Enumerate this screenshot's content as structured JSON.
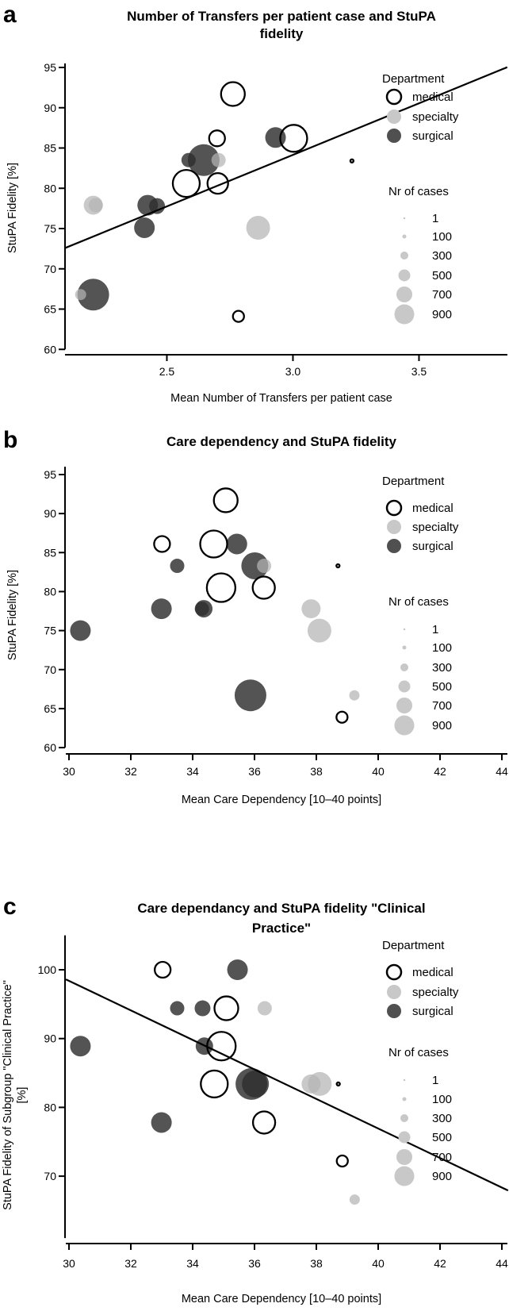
{
  "legend": {
    "department_title": "Department",
    "departments": [
      "medical",
      "specialty",
      "surgical"
    ],
    "cases_title": "Nr of cases",
    "cases": [
      "1",
      "100",
      "300",
      "500",
      "700",
      "900"
    ]
  },
  "colors": {
    "medical_stroke": "#000000",
    "specialty": "#b4b4b4",
    "surgical": "#2e2e2e",
    "legend_specialty": "#c8c8c8",
    "legend_surgical": "#505050"
  },
  "chart_data": [
    {
      "panel_label": "a",
      "type": "scatter",
      "title_lines": [
        "Number of Transfers per patient case and StuPA",
        "fidelity"
      ],
      "xlabel": "Mean Number of Transfers per patient case",
      "ylabel_lines": [
        "StuPA Fidelity [%]"
      ],
      "xlim": [
        2.096,
        3.85
      ],
      "ylim": [
        60,
        95.5
      ],
      "xticks": [
        "2.5",
        "3.0",
        "3.5"
      ],
      "yticks": [
        "60",
        "65",
        "70",
        "75",
        "80",
        "85",
        "90",
        "95"
      ],
      "regression": {
        "intercept": 45.75,
        "slope": 12.8
      },
      "point_format": [
        "x",
        "y",
        "nr_of_cases"
      ],
      "series": [
        {
          "name": "surgical",
          "points": [
            [
              2.424,
              77.9,
              940
            ],
            [
              2.461,
              77.8,
              700
            ],
            [
              2.411,
              75.1,
              940
            ],
            [
              2.208,
              66.8,
              1500
            ],
            [
              2.586,
              83.5,
              620
            ],
            [
              2.646,
              83.5,
              1500
            ],
            [
              2.931,
              86.3,
              940
            ]
          ]
        },
        {
          "name": "specialty",
          "points": [
            [
              2.208,
              77.9,
              860
            ],
            [
              2.218,
              77.9,
              620
            ],
            [
              2.705,
              83.5,
              620
            ],
            [
              2.862,
              75.1,
              1100
            ],
            [
              2.158,
              66.8,
              460
            ]
          ]
        },
        {
          "name": "medical",
          "points": [
            [
              2.762,
              91.7,
              1100
            ],
            [
              2.699,
              86.2,
              700
            ],
            [
              3.003,
              86.2,
              1260
            ],
            [
              2.577,
              80.6,
              1260
            ],
            [
              2.702,
              80.6,
              940
            ],
            [
              2.784,
              64.1,
              460
            ],
            [
              3.234,
              83.4,
              60
            ]
          ]
        }
      ]
    },
    {
      "panel_label": "b",
      "type": "scatter",
      "title_lines": [
        "Care dependency and StuPA fidelity"
      ],
      "xlabel": "Mean Care Dependency [10–40 points]",
      "ylabel_lines": [
        "StuPA Fidelity [%]"
      ],
      "xlim": [
        29.9,
        44.2
      ],
      "ylim": [
        60,
        96
      ],
      "xticks": [
        "30",
        "32",
        "34",
        "36",
        "38",
        "40",
        "42",
        "44"
      ],
      "yticks": [
        "60",
        "65",
        "70",
        "75",
        "80",
        "85",
        "90",
        "95"
      ],
      "regression": null,
      "point_format": [
        "x",
        "y",
        "nr_of_cases"
      ],
      "series": [
        {
          "name": "surgical",
          "points": [
            [
              35.43,
              86.1,
              940
            ],
            [
              36.01,
              83.3,
              1260
            ],
            [
              33.5,
              83.3,
              620
            ],
            [
              32.99,
              77.8,
              940
            ],
            [
              34.36,
              77.8,
              780
            ],
            [
              34.3,
              77.8,
              620
            ],
            [
              30.37,
              75.0,
              940
            ],
            [
              35.87,
              66.7,
              1500
            ]
          ]
        },
        {
          "name": "specialty",
          "points": [
            [
              36.31,
              83.3,
              620
            ],
            [
              37.83,
              77.8,
              860
            ],
            [
              38.1,
              75.0,
              1100
            ],
            [
              39.23,
              66.7,
              420
            ]
          ]
        },
        {
          "name": "medical",
          "points": [
            [
              35.07,
              91.7,
              1100
            ],
            [
              33.01,
              86.1,
              700
            ],
            [
              34.68,
              86.1,
              1260
            ],
            [
              34.92,
              80.5,
              1340
            ],
            [
              36.3,
              80.5,
              1020
            ],
            [
              38.7,
              83.3,
              60
            ],
            [
              38.83,
              63.9,
              460
            ]
          ]
        }
      ]
    },
    {
      "panel_label": "c",
      "type": "scatter",
      "title_lines": [
        "Care dependancy and StuPA fidelity \"Clinical",
        "Practice\""
      ],
      "xlabel": "Mean Care Dependency [10–40 points]",
      "ylabel_lines": [
        "StuPA Fidelity of Subgroup \"Clinical Practice\"",
        "[%]"
      ],
      "xlim": [
        29.9,
        44.2
      ],
      "ylim": [
        61,
        105
      ],
      "xticks": [
        "30",
        "32",
        "34",
        "36",
        "38",
        "40",
        "42",
        "44"
      ],
      "yticks": [
        "70",
        "80",
        "90",
        "100"
      ],
      "regression": {
        "intercept": 162.77,
        "slope": -2.146
      },
      "point_format": [
        "x",
        "y",
        "nr_of_cases"
      ],
      "series": [
        {
          "name": "surgical",
          "points": [
            [
              33.5,
              94.4,
              620
            ],
            [
              34.32,
              94.4,
              700
            ],
            [
              35.45,
              100,
              940
            ],
            [
              30.37,
              88.9,
              940
            ],
            [
              34.38,
              88.9,
              780
            ],
            [
              35.9,
              83.4,
              1500
            ],
            [
              36.03,
              83.4,
              1260
            ],
            [
              32.99,
              77.8,
              940
            ]
          ]
        },
        {
          "name": "specialty",
          "points": [
            [
              36.33,
              94.4,
              620
            ],
            [
              37.83,
              83.4,
              860
            ],
            [
              38.11,
              83.4,
              1100
            ],
            [
              39.24,
              66.6,
              420
            ]
          ]
        },
        {
          "name": "medical",
          "points": [
            [
              33.03,
              100,
              700
            ],
            [
              35.09,
              94.4,
              1100
            ],
            [
              34.93,
              88.9,
              1340
            ],
            [
              34.7,
              83.4,
              1260
            ],
            [
              36.31,
              77.8,
              1020
            ],
            [
              38.71,
              83.4,
              60
            ],
            [
              38.84,
              72.2,
              460
            ]
          ]
        }
      ]
    }
  ]
}
